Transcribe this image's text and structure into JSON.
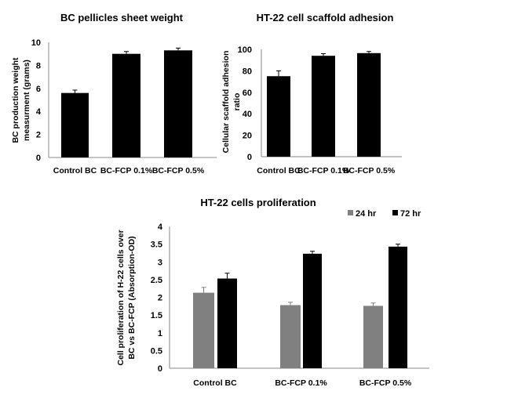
{
  "chart_data": [
    {
      "type": "bar",
      "title": "BC pellicles sheet weight",
      "ylabel": [
        "BC production weight",
        "measurment (grams)"
      ],
      "xlabel": "",
      "categories": [
        "Control BC",
        "BC-FCP 0.1%",
        "BC-FCP 0.5%"
      ],
      "values": [
        5.6,
        9.0,
        9.3
      ],
      "errors": [
        0.25,
        0.2,
        0.2
      ],
      "ylim": [
        0,
        10
      ],
      "yticks": [
        "0",
        "2",
        "4",
        "6",
        "8",
        "10"
      ],
      "color": "#000000"
    },
    {
      "type": "bar",
      "title": "HT-22 cell scaffold adhesion",
      "ylabel": [
        "Cellular scaffold adhesion",
        "ratio"
      ],
      "xlabel": "",
      "categories": [
        "Control BC",
        "BC-FCP 0.1%",
        "BC-FCP 0.5%"
      ],
      "values": [
        75,
        94,
        96.5
      ],
      "errors": [
        5,
        2,
        1.5
      ],
      "ylim": [
        0,
        100
      ],
      "yticks": [
        "0",
        "20",
        "40",
        "60",
        "80",
        "100"
      ],
      "color": "#000000"
    },
    {
      "type": "bar",
      "title": "HT-22 cells proliferation",
      "ylabel": [
        "Cell proliferation of H-22 cells over",
        "BC vs BC-FCP (Absorption-OD)"
      ],
      "xlabel": "",
      "categories": [
        "Control BC",
        "BC-FCP 0.1%",
        "BC-FCP 0.5%"
      ],
      "series": [
        {
          "name": "24 hr",
          "values": [
            2.13,
            1.78,
            1.76
          ],
          "errors": [
            0.15,
            0.08,
            0.08
          ],
          "color": "#808080"
        },
        {
          "name": "72 hr",
          "values": [
            2.53,
            3.23,
            3.43
          ],
          "errors": [
            0.15,
            0.07,
            0.07
          ],
          "color": "#000000"
        }
      ],
      "ylim": [
        0,
        4
      ],
      "yticks": [
        "0",
        "0.5",
        "1",
        "1.5",
        "2",
        "2.5",
        "3",
        "3.5",
        "4"
      ],
      "legend": "top-right"
    }
  ]
}
